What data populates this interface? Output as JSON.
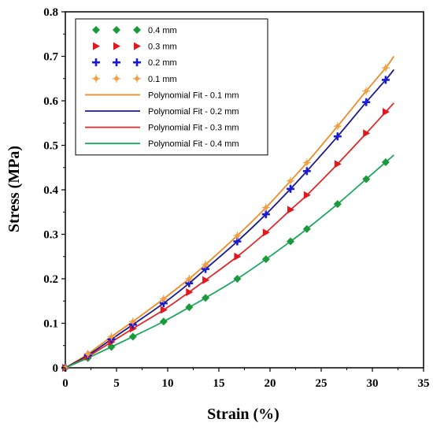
{
  "chart_data": {
    "type": "scatter",
    "xlabel": "Strain (%)",
    "ylabel": "Stress (MPa)",
    "xlim": [
      0,
      35
    ],
    "ylim": [
      0,
      0.8
    ],
    "xticks": [
      0,
      5,
      10,
      15,
      20,
      25,
      30,
      35
    ],
    "yticks": [
      0,
      0.1,
      0.2,
      0.3,
      0.4,
      0.5,
      0.6,
      0.7,
      0.8
    ],
    "xtick_labels": [
      "0",
      "5",
      "10",
      "15",
      "20",
      "25",
      "30",
      "35"
    ],
    "ytick_labels": [
      "0",
      "0.1",
      "0.2",
      "0.3",
      "0.4",
      "0.5",
      "0.6",
      "0.7",
      "0.8"
    ],
    "legend_position": "top-left",
    "series": [
      {
        "name": "0.4 mm",
        "marker": "diamond",
        "color": "#1a9a3a",
        "x": [
          0,
          2.2,
          4.5,
          6.6,
          9.6,
          12.1,
          13.7,
          16.8,
          19.6,
          22.0,
          23.6,
          26.6,
          29.4,
          31.3
        ],
        "y": [
          0,
          0.022,
          0.047,
          0.07,
          0.104,
          0.136,
          0.157,
          0.2,
          0.244,
          0.284,
          0.312,
          0.368,
          0.424,
          0.462
        ]
      },
      {
        "name": "0.3 mm",
        "marker": "triangle-right",
        "color": "#e0191f",
        "x": [
          0,
          2.2,
          4.5,
          6.6,
          9.6,
          12.1,
          13.7,
          16.8,
          19.6,
          22.0,
          23.6,
          26.6,
          29.4,
          31.3
        ],
        "y": [
          0,
          0.025,
          0.058,
          0.088,
          0.13,
          0.17,
          0.197,
          0.25,
          0.304,
          0.355,
          0.388,
          0.458,
          0.527,
          0.575
        ]
      },
      {
        "name": "0.2 mm",
        "marker": "plus",
        "color": "#1a1ad4",
        "x": [
          0,
          2.2,
          4.5,
          6.6,
          9.6,
          12.1,
          13.7,
          16.8,
          19.6,
          22.0,
          23.6,
          26.6,
          29.4,
          31.3
        ],
        "y": [
          0,
          0.028,
          0.064,
          0.097,
          0.145,
          0.19,
          0.222,
          0.284,
          0.345,
          0.402,
          0.442,
          0.52,
          0.597,
          0.647
        ]
      },
      {
        "name": "0.1 mm",
        "marker": "star",
        "color": "#f0a040",
        "x": [
          0,
          2.2,
          4.5,
          6.6,
          9.6,
          12.1,
          13.7,
          16.8,
          19.6,
          22.0,
          23.6,
          26.6,
          29.4,
          31.3
        ],
        "y": [
          0,
          0.031,
          0.07,
          0.104,
          0.155,
          0.2,
          0.232,
          0.297,
          0.36,
          0.42,
          0.461,
          0.543,
          0.622,
          0.674
        ]
      }
    ],
    "fits": [
      {
        "name": "Polynomial Fit - 0.1 mm",
        "color": "#f08a24",
        "x": [
          0,
          2.2,
          4.5,
          6.6,
          9.6,
          12.1,
          13.7,
          16.8,
          19.6,
          22.0,
          23.6,
          26.6,
          29.4,
          31.3,
          32.1
        ],
        "y": [
          0,
          0.031,
          0.07,
          0.104,
          0.155,
          0.2,
          0.232,
          0.297,
          0.36,
          0.42,
          0.461,
          0.543,
          0.622,
          0.674,
          0.7
        ]
      },
      {
        "name": "Polynomial Fit - 0.2 mm",
        "color": "#1a1a8c",
        "x": [
          0,
          2.2,
          4.5,
          6.6,
          9.6,
          12.1,
          13.7,
          16.8,
          19.6,
          22.0,
          23.6,
          26.6,
          29.4,
          31.3,
          32.1
        ],
        "y": [
          0,
          0.028,
          0.064,
          0.097,
          0.145,
          0.19,
          0.222,
          0.284,
          0.345,
          0.402,
          0.442,
          0.52,
          0.597,
          0.647,
          0.67
        ]
      },
      {
        "name": "Polynomial Fit - 0.3 mm",
        "color": "#e02828",
        "x": [
          0,
          2.2,
          4.5,
          6.6,
          9.6,
          12.1,
          13.7,
          16.8,
          19.6,
          22.0,
          23.6,
          26.6,
          29.4,
          31.3,
          32.1
        ],
        "y": [
          0,
          0.025,
          0.058,
          0.088,
          0.13,
          0.17,
          0.197,
          0.25,
          0.304,
          0.355,
          0.388,
          0.458,
          0.527,
          0.575,
          0.595
        ]
      },
      {
        "name": "Polynomial Fit - 0.4 mm",
        "color": "#1aa860",
        "x": [
          0,
          2.2,
          4.5,
          6.6,
          9.6,
          12.1,
          13.7,
          16.8,
          19.6,
          22.0,
          23.6,
          26.6,
          29.4,
          31.3,
          32.1
        ],
        "y": [
          0,
          0.022,
          0.047,
          0.07,
          0.104,
          0.136,
          0.157,
          0.2,
          0.244,
          0.284,
          0.312,
          0.368,
          0.424,
          0.462,
          0.478
        ]
      }
    ]
  }
}
